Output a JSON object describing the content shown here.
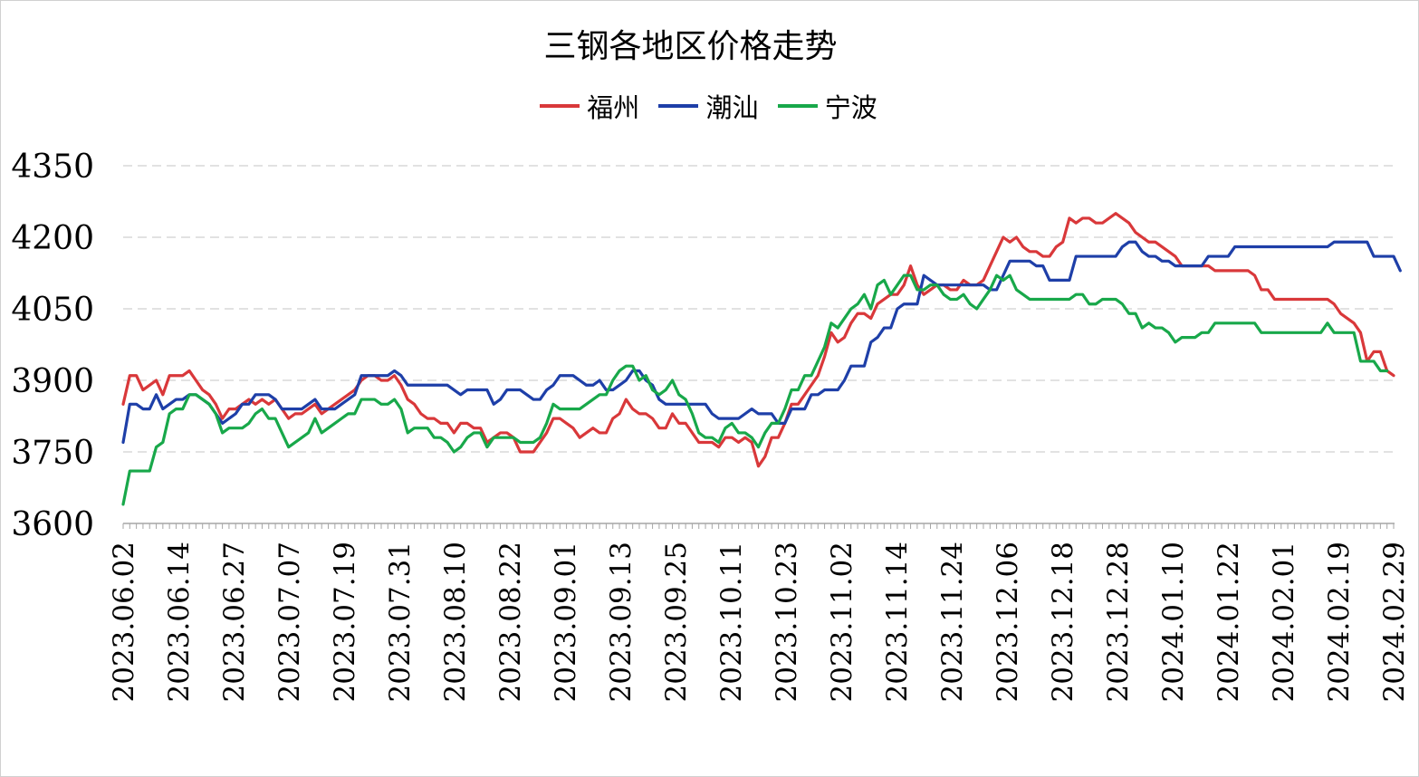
{
  "chart_data": {
    "type": "line",
    "title": "三钢各地区价格走势",
    "xlabel": "",
    "ylabel": "",
    "ylim": [
      3600,
      4350
    ],
    "yticks": [
      3600,
      3750,
      3900,
      4050,
      4200,
      4350
    ],
    "tick_labels": [
      "2023.06.02",
      "2023.06.14",
      "2023.06.27",
      "2023.07.07",
      "2023.07.19",
      "2023.07.31",
      "2023.08.10",
      "2023.08.22",
      "2023.09.01",
      "2023.09.13",
      "2023.09.25",
      "2023.10.11",
      "2023.10.23",
      "2023.11.02",
      "2023.11.14",
      "2023.11.24",
      "2023.12.06",
      "2023.12.18",
      "2023.12.28",
      "2024.01.10",
      "2024.01.22",
      "2024.02.01",
      "2024.02.19",
      "2024.02.29"
    ],
    "legend_position": "top",
    "grid": "horizontal dashed",
    "series": [
      {
        "name": "福州",
        "color": "#D9383A",
        "values": [
          3850,
          3910,
          3910,
          3880,
          3890,
          3900,
          3870,
          3910,
          3910,
          3910,
          3920,
          3900,
          3880,
          3870,
          3850,
          3820,
          3840,
          3840,
          3850,
          3860,
          3850,
          3860,
          3850,
          3860,
          3840,
          3820,
          3830,
          3830,
          3840,
          3850,
          3830,
          3840,
          3850,
          3860,
          3870,
          3880,
          3900,
          3910,
          3910,
          3900,
          3900,
          3910,
          3890,
          3860,
          3850,
          3830,
          3820,
          3820,
          3810,
          3810,
          3790,
          3810,
          3810,
          3800,
          3800,
          3770,
          3780,
          3790,
          3790,
          3780,
          3750,
          3750,
          3750,
          3770,
          3790,
          3820,
          3820,
          3810,
          3800,
          3780,
          3790,
          3800,
          3790,
          3790,
          3820,
          3830,
          3860,
          3840,
          3830,
          3830,
          3820,
          3800,
          3800,
          3830,
          3810,
          3810,
          3790,
          3770,
          3770,
          3770,
          3760,
          3780,
          3780,
          3770,
          3780,
          3770,
          3720,
          3740,
          3780,
          3780,
          3810,
          3850,
          3850,
          3870,
          3890,
          3910,
          3950,
          4000,
          3980,
          3990,
          4020,
          4040,
          4040,
          4030,
          4060,
          4070,
          4080,
          4080,
          4100,
          4140,
          4100,
          4080,
          4090,
          4100,
          4100,
          4090,
          4090,
          4110,
          4100,
          4100,
          4110,
          4140,
          4170,
          4200,
          4190,
          4200,
          4180,
          4170,
          4170,
          4160,
          4160,
          4180,
          4190,
          4240,
          4230,
          4240,
          4240,
          4230,
          4230,
          4240,
          4250,
          4240,
          4230,
          4210,
          4200,
          4190,
          4190,
          4180,
          4170,
          4160,
          4140,
          4140,
          4140,
          4140,
          4140,
          4130,
          4130,
          4130,
          4130,
          4130,
          4130,
          4120,
          4090,
          4090,
          4070,
          4070,
          4070,
          4070,
          4070,
          4070,
          4070,
          4070,
          4070,
          4060,
          4040,
          4030,
          4020,
          4000,
          3940,
          3960,
          3960,
          3920,
          3910
        ]
      },
      {
        "name": "潮汕",
        "color": "#1E3FA8",
        "values": [
          3770,
          3850,
          3850,
          3840,
          3840,
          3870,
          3840,
          3850,
          3860,
          3860,
          3870,
          3870,
          3860,
          3850,
          3830,
          3810,
          3820,
          3830,
          3850,
          3850,
          3870,
          3870,
          3870,
          3860,
          3840,
          3840,
          3840,
          3840,
          3850,
          3860,
          3840,
          3840,
          3840,
          3850,
          3860,
          3870,
          3910,
          3910,
          3910,
          3910,
          3910,
          3920,
          3910,
          3890,
          3890,
          3890,
          3890,
          3890,
          3890,
          3890,
          3880,
          3870,
          3880,
          3880,
          3880,
          3880,
          3850,
          3860,
          3880,
          3880,
          3880,
          3870,
          3860,
          3860,
          3880,
          3890,
          3910,
          3910,
          3910,
          3900,
          3890,
          3890,
          3900,
          3880,
          3880,
          3890,
          3900,
          3920,
          3920,
          3900,
          3890,
          3860,
          3850,
          3850,
          3850,
          3850,
          3850,
          3850,
          3850,
          3830,
          3820,
          3820,
          3820,
          3820,
          3830,
          3840,
          3830,
          3830,
          3830,
          3810,
          3810,
          3840,
          3840,
          3840,
          3870,
          3870,
          3880,
          3880,
          3880,
          3900,
          3930,
          3930,
          3930,
          3980,
          3990,
          4010,
          4010,
          4050,
          4060,
          4060,
          4060,
          4120,
          4110,
          4100,
          4100,
          4100,
          4100,
          4100,
          4100,
          4100,
          4100,
          4090,
          4090,
          4120,
          4150,
          4150,
          4150,
          4150,
          4140,
          4140,
          4110,
          4110,
          4110,
          4110,
          4160,
          4160,
          4160,
          4160,
          4160,
          4160,
          4160,
          4180,
          4190,
          4190,
          4170,
          4160,
          4160,
          4150,
          4150,
          4140,
          4140,
          4140,
          4140,
          4140,
          4160,
          4160,
          4160,
          4160,
          4180,
          4180,
          4180,
          4180,
          4180,
          4180,
          4180,
          4180,
          4180,
          4180,
          4180,
          4180,
          4180,
          4180,
          4180,
          4190,
          4190,
          4190,
          4190,
          4190,
          4190,
          4160,
          4160,
          4160,
          4160,
          4130
        ]
      },
      {
        "name": "宁波",
        "color": "#18A84A",
        "values": [
          3640,
          3710,
          3710,
          3710,
          3710,
          3760,
          3770,
          3830,
          3840,
          3840,
          3870,
          3870,
          3860,
          3850,
          3830,
          3790,
          3800,
          3800,
          3800,
          3810,
          3830,
          3840,
          3820,
          3820,
          3790,
          3760,
          3770,
          3780,
          3790,
          3820,
          3790,
          3800,
          3810,
          3820,
          3830,
          3830,
          3860,
          3860,
          3860,
          3850,
          3850,
          3860,
          3840,
          3790,
          3800,
          3800,
          3800,
          3780,
          3780,
          3770,
          3750,
          3760,
          3780,
          3790,
          3790,
          3760,
          3780,
          3780,
          3780,
          3780,
          3770,
          3770,
          3770,
          3780,
          3810,
          3850,
          3840,
          3840,
          3840,
          3840,
          3850,
          3860,
          3870,
          3870,
          3900,
          3920,
          3930,
          3930,
          3900,
          3910,
          3880,
          3870,
          3880,
          3900,
          3870,
          3860,
          3830,
          3790,
          3780,
          3780,
          3770,
          3800,
          3810,
          3790,
          3790,
          3780,
          3760,
          3790,
          3810,
          3810,
          3840,
          3880,
          3880,
          3910,
          3910,
          3940,
          3970,
          4020,
          4010,
          4030,
          4050,
          4060,
          4080,
          4050,
          4100,
          4110,
          4080,
          4100,
          4120,
          4120,
          4090,
          4090,
          4100,
          4100,
          4080,
          4070,
          4070,
          4080,
          4060,
          4050,
          4070,
          4090,
          4120,
          4110,
          4120,
          4090,
          4080,
          4070,
          4070,
          4070,
          4070,
          4070,
          4070,
          4070,
          4080,
          4080,
          4060,
          4060,
          4070,
          4070,
          4070,
          4060,
          4040,
          4040,
          4010,
          4020,
          4010,
          4010,
          4000,
          3980,
          3990,
          3990,
          3990,
          4000,
          4000,
          4020,
          4020,
          4020,
          4020,
          4020,
          4020,
          4020,
          4000,
          4000,
          4000,
          4000,
          4000,
          4000,
          4000,
          4000,
          4000,
          4000,
          4020,
          4000,
          4000,
          4000,
          4000,
          3940,
          3940,
          3940,
          3920,
          3920
        ]
      }
    ]
  }
}
